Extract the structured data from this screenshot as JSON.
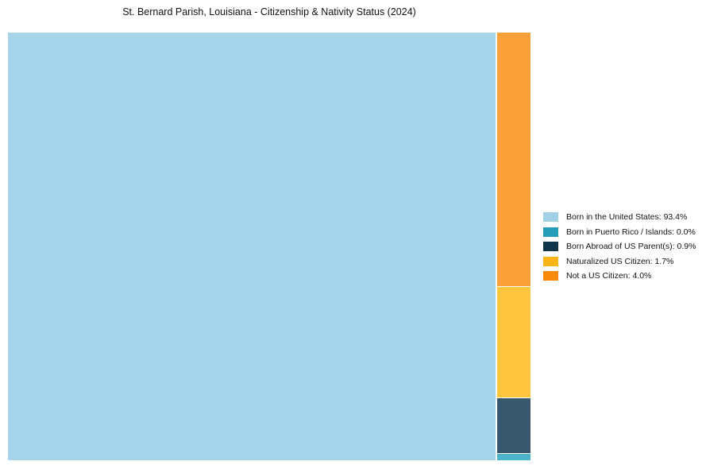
{
  "title": "St. Bernard Parish, Louisiana - Citizenship & Nativity Status (2024)",
  "colors": {
    "background": "#ffffff",
    "text": "#111111"
  },
  "chart_data": {
    "type": "treemap",
    "title": "St. Bernard Parish, Louisiana - Citizenship & Nativity Status (2024)",
    "unit": "percent",
    "grid": false,
    "legend_position": "right-center",
    "series": [
      {
        "label": "Born in the United States",
        "value": 93.4,
        "legend_label": "Born in the United States: 93.4%",
        "chart_color": "#a6d4ea",
        "legend_color": "#a2d1e7",
        "placement": "main",
        "column_weight": null
      },
      {
        "label": "Born in Puerto Rico / Islands",
        "value": 0.0,
        "legend_label": "Born in Puerto Rico / Islands: 0.0%",
        "chart_color": "#4db3c8",
        "legend_color": "#259cb8",
        "placement": "column",
        "column_weight": 0.1
      },
      {
        "label": "Born Abroad of US Parent(s)",
        "value": 0.9,
        "legend_label": "Born Abroad of US Parent(s): 0.9%",
        "chart_color": "#38596d",
        "legend_color": "#0d3448",
        "placement": "column",
        "column_weight": 0.87
      },
      {
        "label": "Naturalized US Citizen",
        "value": 1.7,
        "legend_label": "Naturalized US Citizen: 1.7%",
        "chart_color": "#fec53e",
        "legend_color": "#fcb316",
        "placement": "column",
        "column_weight": 1.75
      },
      {
        "label": "Not a US Citizen",
        "value": 4.0,
        "legend_label": "Not a US Citizen: 4.0%",
        "chart_color": "#f9a138",
        "legend_color": "#f8890b",
        "placement": "column",
        "column_weight": 4.0
      }
    ],
    "column_order_top_to_bottom": [
      "Not a US Citizen",
      "Naturalized US Citizen",
      "Born Abroad of US Parent(s)",
      "Born in Puerto Rico / Islands"
    ]
  }
}
